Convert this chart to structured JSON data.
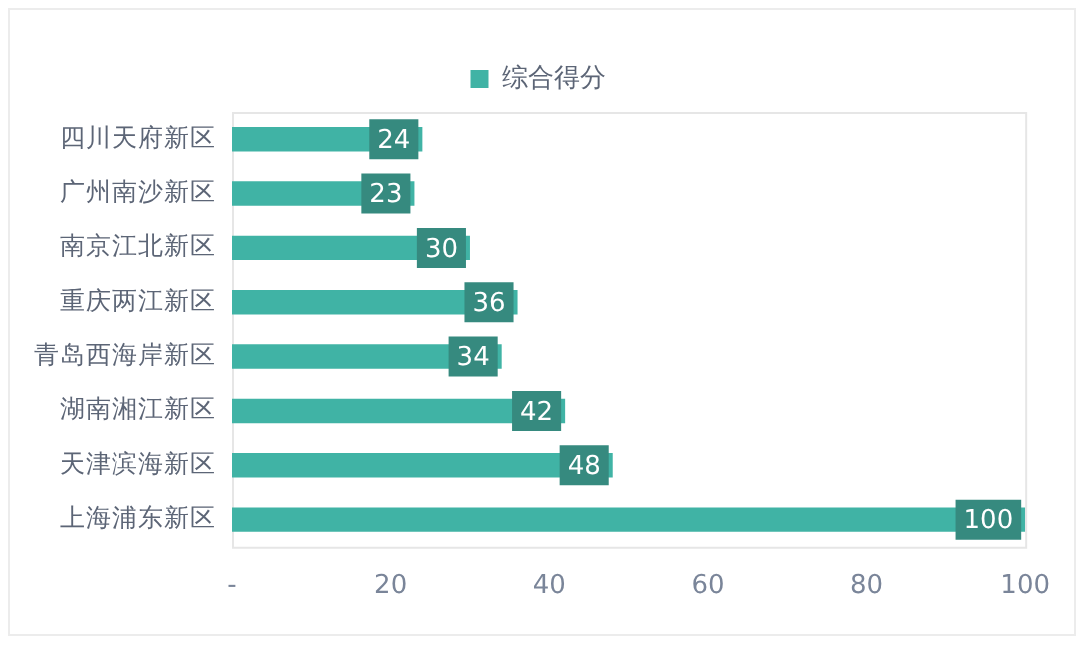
{
  "chart_data": {
    "type": "bar",
    "orientation": "horizontal",
    "categories": [
      "四川天府新区",
      "广州南沙新区",
      "南京江北新区",
      "重庆两江新区",
      "青岛西海岸新区",
      "湖南湘江新区",
      "天津滨海新区",
      "上海浦东新区"
    ],
    "series": [
      {
        "name": "综合得分",
        "color": "#40b3a5",
        "values": [
          24,
          23,
          30,
          36,
          34,
          42,
          48,
          100
        ]
      }
    ],
    "xlim": [
      0,
      100
    ],
    "xticks": [
      {
        "value": 0,
        "label": "-"
      },
      20,
      40,
      60,
      80,
      100
    ],
    "grid": false,
    "legend": "top",
    "data_labels": true
  }
}
